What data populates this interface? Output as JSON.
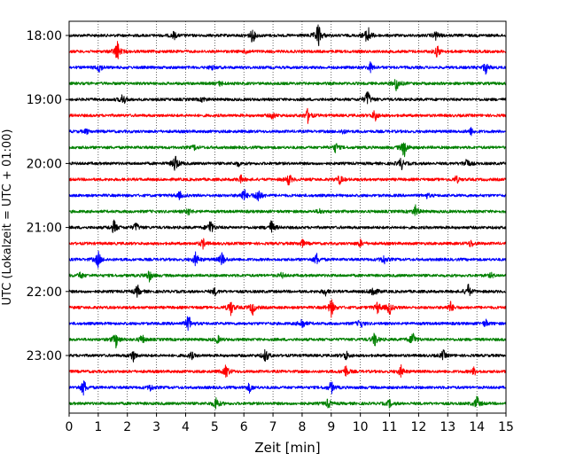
{
  "chart_data": {
    "type": "line",
    "title": "",
    "xlabel": "Zeit  [min]",
    "ylabel": "UTC (Lokalzeit = UTC + 01:00)",
    "xlim": [
      0,
      15
    ],
    "x_ticks": [
      "0",
      "1",
      "2",
      "3",
      "4",
      "5",
      "6",
      "7",
      "8",
      "9",
      "10",
      "11",
      "12",
      "13",
      "14",
      "15"
    ],
    "y_ticks": [
      "18:00",
      "19:00",
      "20:00",
      "21:00",
      "22:00",
      "23:00"
    ],
    "grid": "vertical-dotted",
    "trace_colors": [
      "#000000",
      "#ff0000",
      "#0000ff",
      "#008000"
    ],
    "series": [
      {
        "start": "18:00",
        "color": "#000000",
        "events": [
          [
            6.3,
            6
          ],
          [
            8.55,
            11
          ],
          [
            10.25,
            9
          ],
          [
            3.6,
            3
          ],
          [
            12.6,
            4
          ]
        ]
      },
      {
        "start": "18:15",
        "color": "#ff0000",
        "events": [
          [
            1.65,
            9
          ],
          [
            12.65,
            5
          ],
          [
            6.1,
            2
          ]
        ]
      },
      {
        "start": "18:30",
        "color": "#0000ff",
        "events": [
          [
            1.05,
            4
          ],
          [
            10.35,
            4
          ],
          [
            14.3,
            5
          ],
          [
            4.9,
            2
          ]
        ]
      },
      {
        "start": "18:45",
        "color": "#008000",
        "events": [
          [
            11.25,
            7
          ],
          [
            5.2,
            2
          ]
        ]
      },
      {
        "start": "19:00",
        "color": "#000000",
        "events": [
          [
            1.85,
            5
          ],
          [
            10.25,
            8
          ],
          [
            4.6,
            2
          ]
        ]
      },
      {
        "start": "19:15",
        "color": "#ff0000",
        "events": [
          [
            8.2,
            6
          ],
          [
            10.5,
            5
          ],
          [
            7.0,
            3
          ]
        ]
      },
      {
        "start": "19:30",
        "color": "#0000ff",
        "events": [
          [
            0.6,
            2
          ],
          [
            13.8,
            3
          ],
          [
            9.4,
            2
          ]
        ]
      },
      {
        "start": "19:45",
        "color": "#008000",
        "events": [
          [
            11.5,
            8
          ],
          [
            9.15,
            4
          ],
          [
            4.3,
            2
          ]
        ]
      },
      {
        "start": "20:00",
        "color": "#000000",
        "events": [
          [
            3.65,
            8
          ],
          [
            11.4,
            5
          ],
          [
            13.65,
            5
          ],
          [
            5.8,
            2
          ]
        ]
      },
      {
        "start": "20:15",
        "color": "#ff0000",
        "events": [
          [
            7.55,
            5
          ],
          [
            9.3,
            4
          ],
          [
            13.3,
            3
          ],
          [
            5.9,
            3
          ]
        ]
      },
      {
        "start": "20:30",
        "color": "#0000ff",
        "events": [
          [
            6.0,
            6
          ],
          [
            6.5,
            7
          ],
          [
            3.8,
            3
          ],
          [
            12.3,
            2
          ]
        ]
      },
      {
        "start": "20:45",
        "color": "#008000",
        "events": [
          [
            4.1,
            3
          ],
          [
            11.9,
            5
          ],
          [
            8.6,
            2
          ]
        ]
      },
      {
        "start": "21:00",
        "color": "#000000",
        "events": [
          [
            1.55,
            6
          ],
          [
            2.3,
            4
          ],
          [
            4.85,
            7
          ],
          [
            6.95,
            6
          ]
        ]
      },
      {
        "start": "21:15",
        "color": "#ff0000",
        "events": [
          [
            4.6,
            4
          ],
          [
            8.0,
            3
          ],
          [
            13.8,
            3
          ],
          [
            10.0,
            3
          ]
        ]
      },
      {
        "start": "21:30",
        "color": "#0000ff",
        "events": [
          [
            1.0,
            7
          ],
          [
            4.35,
            6
          ],
          [
            5.25,
            6
          ],
          [
            8.5,
            5
          ],
          [
            10.8,
            4
          ]
        ]
      },
      {
        "start": "21:45",
        "color": "#008000",
        "events": [
          [
            2.75,
            5
          ],
          [
            0.4,
            3
          ],
          [
            7.3,
            2
          ],
          [
            14.5,
            2
          ]
        ]
      },
      {
        "start": "22:00",
        "color": "#000000",
        "events": [
          [
            2.35,
            5
          ],
          [
            10.45,
            6
          ],
          [
            13.7,
            6
          ],
          [
            5.0,
            3
          ],
          [
            8.8,
            3
          ]
        ]
      },
      {
        "start": "22:15",
        "color": "#ff0000",
        "events": [
          [
            5.55,
            7
          ],
          [
            6.3,
            6
          ],
          [
            9.0,
            8
          ],
          [
            10.6,
            5
          ],
          [
            11.0,
            6
          ],
          [
            13.1,
            5
          ]
        ]
      },
      {
        "start": "22:30",
        "color": "#0000ff",
        "events": [
          [
            4.1,
            7
          ],
          [
            8.0,
            5
          ],
          [
            10.0,
            4
          ],
          [
            14.3,
            3
          ]
        ]
      },
      {
        "start": "22:45",
        "color": "#008000",
        "events": [
          [
            1.6,
            7
          ],
          [
            2.5,
            4
          ],
          [
            10.5,
            6
          ],
          [
            11.8,
            7
          ],
          [
            5.1,
            3
          ]
        ]
      },
      {
        "start": "23:00",
        "color": "#000000",
        "events": [
          [
            2.2,
            5
          ],
          [
            6.75,
            6
          ],
          [
            9.5,
            4
          ],
          [
            12.85,
            4
          ],
          [
            4.2,
            3
          ]
        ]
      },
      {
        "start": "23:15",
        "color": "#ff0000",
        "events": [
          [
            5.4,
            6
          ],
          [
            9.5,
            5
          ],
          [
            11.4,
            5
          ],
          [
            13.9,
            3
          ]
        ]
      },
      {
        "start": "23:30",
        "color": "#0000ff",
        "events": [
          [
            0.5,
            7
          ],
          [
            6.2,
            4
          ],
          [
            9.0,
            5
          ],
          [
            2.8,
            3
          ]
        ]
      },
      {
        "start": "23:45",
        "color": "#008000",
        "events": [
          [
            5.05,
            6
          ],
          [
            14.0,
            6
          ],
          [
            8.9,
            4
          ],
          [
            11.0,
            3
          ]
        ]
      }
    ]
  }
}
